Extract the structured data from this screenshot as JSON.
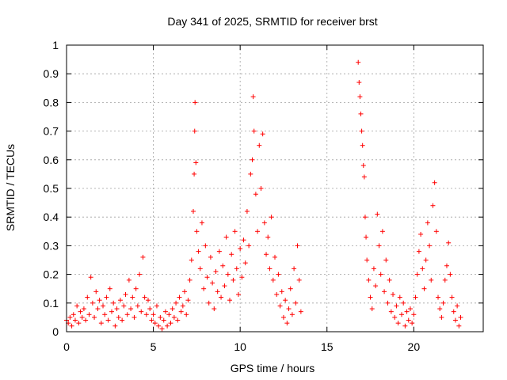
{
  "chart_data": {
    "type": "scatter",
    "title": "Day 341 of 2025, SRMTID for receiver brst",
    "xlabel": "GPS time / hours",
    "ylabel": "SRMTID / TECUs",
    "xlim": [
      0,
      24
    ],
    "ylim": [
      0,
      1
    ],
    "xticks": [
      0,
      5,
      10,
      15,
      20
    ],
    "yticks": [
      0,
      0.1,
      0.2,
      0.3,
      0.4,
      0.5,
      0.6,
      0.7,
      0.8,
      0.9,
      1
    ],
    "xtick_labels": [
      "0",
      "5",
      "10",
      "15",
      "20"
    ],
    "ytick_labels": [
      "0",
      "0.1",
      "0.2",
      "0.3",
      "0.4",
      "0.5",
      "0.6",
      "0.7",
      "0.8",
      "0.9",
      "1"
    ],
    "grid": true,
    "marker": "+",
    "color": "#ff0000",
    "series": [
      {
        "name": "SRMTID",
        "points": [
          [
            0.0,
            0.04
          ],
          [
            0.1,
            0.03
          ],
          [
            0.2,
            0.05
          ],
          [
            0.3,
            0.02
          ],
          [
            0.4,
            0.06
          ],
          [
            0.5,
            0.04
          ],
          [
            0.6,
            0.09
          ],
          [
            0.7,
            0.03
          ],
          [
            0.8,
            0.07
          ],
          [
            0.9,
            0.05
          ],
          [
            1.0,
            0.08
          ],
          [
            1.1,
            0.04
          ],
          [
            1.2,
            0.12
          ],
          [
            1.3,
            0.06
          ],
          [
            1.4,
            0.19
          ],
          [
            1.5,
            0.1
          ],
          [
            1.6,
            0.05
          ],
          [
            1.7,
            0.14
          ],
          [
            1.8,
            0.08
          ],
          [
            1.9,
            0.11
          ],
          [
            2.0,
            0.03
          ],
          [
            2.1,
            0.09
          ],
          [
            2.2,
            0.06
          ],
          [
            2.3,
            0.12
          ],
          [
            2.4,
            0.04
          ],
          [
            2.5,
            0.15
          ],
          [
            2.6,
            0.07
          ],
          [
            2.7,
            0.1
          ],
          [
            2.8,
            0.02
          ],
          [
            2.9,
            0.08
          ],
          [
            3.0,
            0.05
          ],
          [
            3.1,
            0.11
          ],
          [
            3.2,
            0.04
          ],
          [
            3.3,
            0.09
          ],
          [
            3.4,
            0.13
          ],
          [
            3.5,
            0.06
          ],
          [
            3.6,
            0.18
          ],
          [
            3.7,
            0.08
          ],
          [
            3.8,
            0.12
          ],
          [
            3.9,
            0.05
          ],
          [
            4.0,
            0.15
          ],
          [
            4.1,
            0.09
          ],
          [
            4.2,
            0.2
          ],
          [
            4.3,
            0.07
          ],
          [
            4.4,
            0.26
          ],
          [
            4.5,
            0.12
          ],
          [
            4.6,
            0.06
          ],
          [
            4.7,
            0.11
          ],
          [
            4.8,
            0.08
          ],
          [
            4.9,
            0.04
          ],
          [
            5.0,
            0.06
          ],
          [
            5.1,
            0.03
          ],
          [
            5.2,
            0.09
          ],
          [
            5.3,
            0.02
          ],
          [
            5.4,
            0.05
          ],
          [
            5.5,
            0.01
          ],
          [
            5.6,
            0.04
          ],
          [
            5.7,
            0.07
          ],
          [
            5.8,
            0.02
          ],
          [
            5.9,
            0.06
          ],
          [
            6.0,
            0.03
          ],
          [
            6.1,
            0.08
          ],
          [
            6.2,
            0.05
          ],
          [
            6.3,
            0.1
          ],
          [
            6.4,
            0.04
          ],
          [
            6.5,
            0.12
          ],
          [
            6.6,
            0.07
          ],
          [
            6.7,
            0.09
          ],
          [
            6.8,
            0.14
          ],
          [
            6.9,
            0.06
          ],
          [
            7.0,
            0.11
          ],
          [
            7.1,
            0.18
          ],
          [
            7.2,
            0.25
          ],
          [
            7.3,
            0.42
          ],
          [
            7.35,
            0.55
          ],
          [
            7.38,
            0.7
          ],
          [
            7.4,
            0.8
          ],
          [
            7.45,
            0.59
          ],
          [
            7.5,
            0.35
          ],
          [
            7.6,
            0.28
          ],
          [
            7.7,
            0.22
          ],
          [
            7.8,
            0.38
          ],
          [
            7.9,
            0.15
          ],
          [
            8.0,
            0.3
          ],
          [
            8.1,
            0.19
          ],
          [
            8.2,
            0.1
          ],
          [
            8.3,
            0.26
          ],
          [
            8.4,
            0.17
          ],
          [
            8.5,
            0.08
          ],
          [
            8.6,
            0.21
          ],
          [
            8.7,
            0.14
          ],
          [
            8.8,
            0.28
          ],
          [
            8.9,
            0.12
          ],
          [
            9.0,
            0.23
          ],
          [
            9.1,
            0.16
          ],
          [
            9.2,
            0.33
          ],
          [
            9.3,
            0.2
          ],
          [
            9.4,
            0.11
          ],
          [
            9.5,
            0.27
          ],
          [
            9.6,
            0.18
          ],
          [
            9.7,
            0.35
          ],
          [
            9.8,
            0.22
          ],
          [
            9.9,
            0.13
          ],
          [
            10.0,
            0.29
          ],
          [
            10.1,
            0.19
          ],
          [
            10.2,
            0.32
          ],
          [
            10.3,
            0.24
          ],
          [
            10.4,
            0.42
          ],
          [
            10.5,
            0.3
          ],
          [
            10.6,
            0.55
          ],
          [
            10.7,
            0.6
          ],
          [
            10.75,
            0.82
          ],
          [
            10.8,
            0.7
          ],
          [
            10.9,
            0.48
          ],
          [
            11.0,
            0.35
          ],
          [
            11.1,
            0.65
          ],
          [
            11.2,
            0.5
          ],
          [
            11.3,
            0.69
          ],
          [
            11.4,
            0.38
          ],
          [
            11.5,
            0.27
          ],
          [
            11.6,
            0.33
          ],
          [
            11.7,
            0.22
          ],
          [
            11.8,
            0.4
          ],
          [
            11.9,
            0.18
          ],
          [
            12.0,
            0.26
          ],
          [
            12.1,
            0.13
          ],
          [
            12.2,
            0.2
          ],
          [
            12.3,
            0.09
          ],
          [
            12.4,
            0.14
          ],
          [
            12.5,
            0.05
          ],
          [
            12.6,
            0.11
          ],
          [
            12.7,
            0.03
          ],
          [
            12.8,
            0.08
          ],
          [
            12.9,
            0.15
          ],
          [
            13.0,
            0.06
          ],
          [
            13.1,
            0.22
          ],
          [
            13.2,
            0.1
          ],
          [
            13.3,
            0.3
          ],
          [
            13.4,
            0.18
          ],
          [
            13.5,
            0.07
          ],
          [
            16.8,
            0.94
          ],
          [
            16.85,
            0.87
          ],
          [
            16.9,
            0.82
          ],
          [
            16.95,
            0.76
          ],
          [
            17.0,
            0.7
          ],
          [
            17.05,
            0.65
          ],
          [
            17.1,
            0.58
          ],
          [
            17.15,
            0.54
          ],
          [
            17.2,
            0.4
          ],
          [
            17.25,
            0.33
          ],
          [
            17.3,
            0.25
          ],
          [
            17.4,
            0.18
          ],
          [
            17.5,
            0.12
          ],
          [
            17.6,
            0.08
          ],
          [
            17.7,
            0.22
          ],
          [
            17.8,
            0.16
          ],
          [
            17.9,
            0.41
          ],
          [
            18.0,
            0.3
          ],
          [
            18.1,
            0.2
          ],
          [
            18.2,
            0.35
          ],
          [
            18.3,
            0.14
          ],
          [
            18.4,
            0.25
          ],
          [
            18.5,
            0.1
          ],
          [
            18.6,
            0.18
          ],
          [
            18.7,
            0.07
          ],
          [
            18.8,
            0.13
          ],
          [
            18.9,
            0.05
          ],
          [
            19.0,
            0.09
          ],
          [
            19.1,
            0.03
          ],
          [
            19.2,
            0.12
          ],
          [
            19.3,
            0.06
          ],
          [
            19.4,
            0.1
          ],
          [
            19.5,
            0.02
          ],
          [
            19.6,
            0.07
          ],
          [
            19.7,
            0.04
          ],
          [
            19.8,
            0.08
          ],
          [
            19.9,
            0.03
          ],
          [
            20.0,
            0.06
          ],
          [
            20.1,
            0.12
          ],
          [
            20.2,
            0.2
          ],
          [
            20.3,
            0.28
          ],
          [
            20.4,
            0.34
          ],
          [
            20.5,
            0.22
          ],
          [
            20.6,
            0.15
          ],
          [
            20.7,
            0.25
          ],
          [
            20.8,
            0.38
          ],
          [
            20.9,
            0.3
          ],
          [
            21.0,
            0.18
          ],
          [
            21.1,
            0.44
          ],
          [
            21.2,
            0.52
          ],
          [
            21.3,
            0.35
          ],
          [
            21.4,
            0.12
          ],
          [
            21.5,
            0.08
          ],
          [
            21.6,
            0.05
          ],
          [
            21.7,
            0.1
          ],
          [
            21.8,
            0.18
          ],
          [
            21.9,
            0.23
          ],
          [
            22.0,
            0.31
          ],
          [
            22.1,
            0.2
          ],
          [
            22.2,
            0.12
          ],
          [
            22.3,
            0.07
          ],
          [
            22.4,
            0.04
          ],
          [
            22.5,
            0.09
          ],
          [
            22.6,
            0.02
          ],
          [
            22.7,
            0.05
          ]
        ]
      }
    ]
  }
}
